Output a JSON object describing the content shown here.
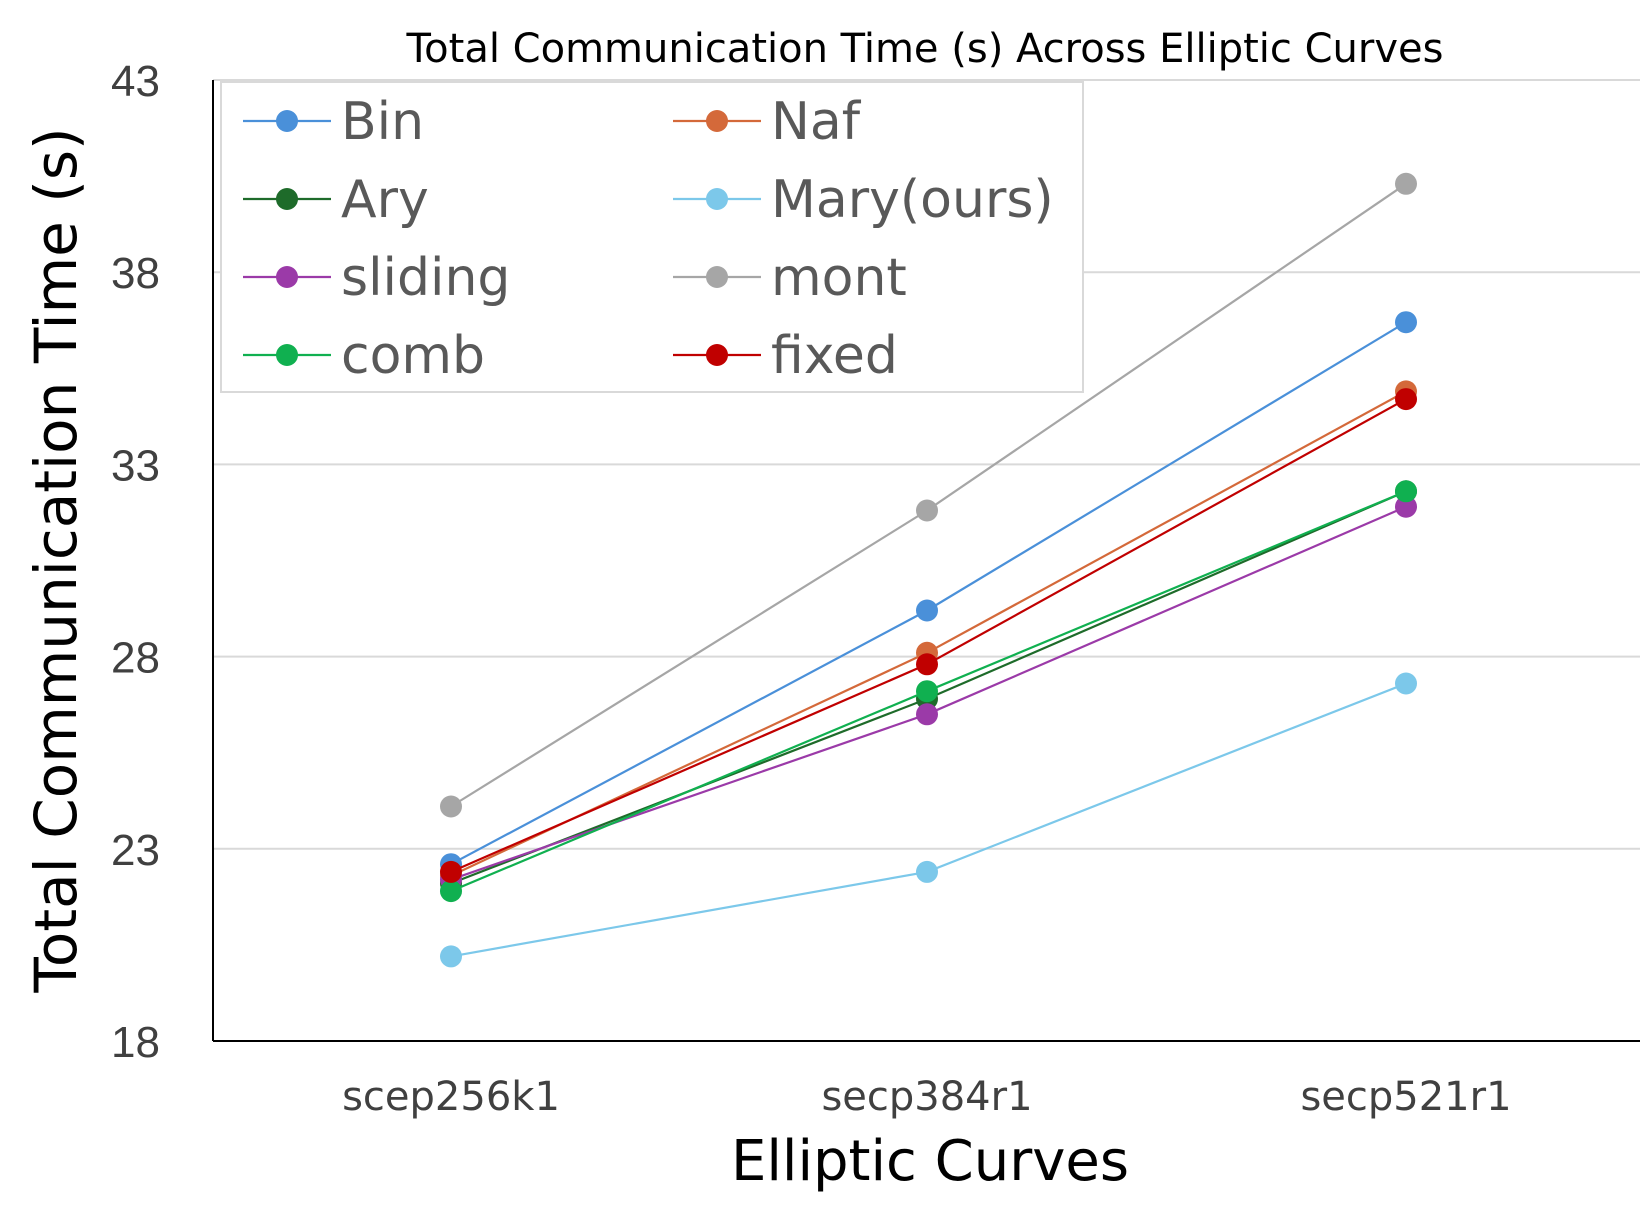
{
  "chart_data": {
    "type": "line",
    "title": "Total Communication Time (s) Across Elliptic Curves",
    "xlabel": "Elliptic Curves",
    "ylabel": "Total Communication Time (s)",
    "categories": [
      "scep256k1",
      "secp384r1",
      "secp521r1"
    ],
    "ylim": [
      18,
      43
    ],
    "yticks": [
      18,
      23,
      28,
      33,
      38,
      43
    ],
    "grid": true,
    "legend_position": "top-left",
    "series": [
      {
        "name": "Bin",
        "color": "#4a90d9",
        "values": [
          22.6,
          29.2,
          36.7
        ]
      },
      {
        "name": "Naf",
        "color": "#d4693a",
        "values": [
          22.3,
          28.1,
          34.9
        ]
      },
      {
        "name": "Ary",
        "color": "#1e6b2a",
        "values": [
          22.1,
          26.9,
          32.3
        ]
      },
      {
        "name": "Mary(ours)",
        "color": "#7cc8ea",
        "values": [
          20.2,
          22.4,
          27.3
        ]
      },
      {
        "name": "sliding",
        "color": "#9b3aa8",
        "values": [
          22.2,
          26.5,
          31.9
        ]
      },
      {
        "name": "mont",
        "color": "#a6a6a6",
        "values": [
          24.1,
          31.8,
          40.3
        ]
      },
      {
        "name": "comb",
        "color": "#10b050",
        "values": [
          21.9,
          27.1,
          32.3
        ]
      },
      {
        "name": "fixed",
        "color": "#c00000",
        "values": [
          22.4,
          27.8,
          34.7
        ]
      }
    ]
  }
}
